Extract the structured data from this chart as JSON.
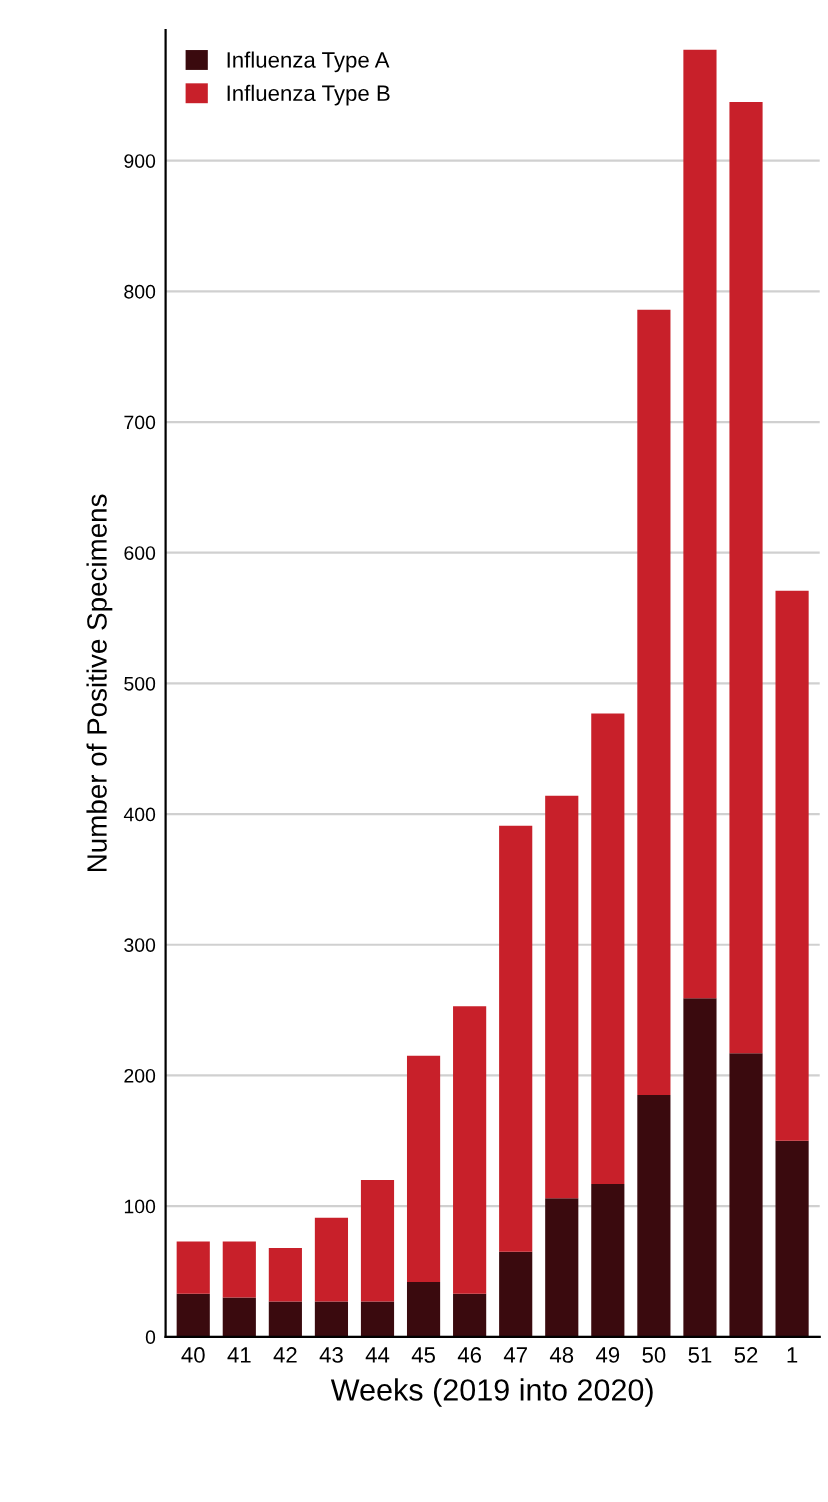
{
  "chart_data": {
    "type": "bar",
    "stacked": true,
    "categories": [
      "40",
      "41",
      "42",
      "43",
      "44",
      "45",
      "46",
      "47",
      "48",
      "49",
      "50",
      "51",
      "52",
      "1"
    ],
    "series": [
      {
        "name": "Influenza Type A",
        "color": "#3a0a0e",
        "values": [
          33,
          30,
          27,
          27,
          27,
          42,
          33,
          65,
          106,
          117,
          185,
          259,
          217,
          150
        ]
      },
      {
        "name": "Influenza Type B",
        "color": "#c8202a",
        "values": [
          40,
          43,
          41,
          64,
          93,
          173,
          220,
          326,
          308,
          360,
          601,
          726,
          728,
          421
        ]
      }
    ],
    "xlabel": "Weeks (2019 into 2020)",
    "ylabel": "Number of Positive Specimens",
    "ylim": [
      0,
      1000
    ],
    "yticks": [
      0,
      100,
      200,
      300,
      400,
      500,
      600,
      700,
      800,
      900
    ],
    "grid": "y",
    "legend": "top left"
  }
}
